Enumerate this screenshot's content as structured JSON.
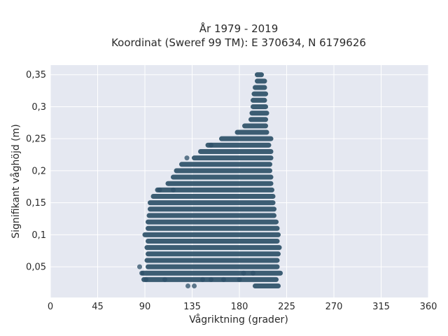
{
  "chart_data": {
    "type": "scatter",
    "title": "År 1979 - 2019",
    "subtitle": "Koordinat (Sweref 99 TM): E 370634, N 6179626",
    "xlabel": "Vågriktning (grader)",
    "ylabel": "Signifikant våghöjd (m)",
    "xlim": [
      0,
      360
    ],
    "ylim": [
      0.002,
      0.365
    ],
    "x_ticks": [
      0,
      45,
      90,
      135,
      180,
      225,
      270,
      315,
      360
    ],
    "x_tick_labels": [
      "0",
      "45",
      "90",
      "135",
      "180",
      "225",
      "270",
      "315",
      "360"
    ],
    "y_ticks": [
      0.05,
      0.1,
      0.15,
      0.2,
      0.25,
      0.3,
      0.35
    ],
    "y_tick_labels": [
      "0,05",
      "0,1",
      "0,15",
      "0,2",
      "0,25",
      "0,3",
      "0,35"
    ],
    "grid": true,
    "marker_color": "#2e5068",
    "plot_background": "#e5e8f1",
    "bands": [
      {
        "y": 0.02,
        "x_min": 195,
        "x_max": 217
      },
      {
        "y": 0.03,
        "x_min": 89,
        "x_max": 215
      },
      {
        "y": 0.04,
        "x_min": 88,
        "x_max": 219
      },
      {
        "y": 0.05,
        "x_min": 93,
        "x_max": 216
      },
      {
        "y": 0.06,
        "x_min": 92,
        "x_max": 216
      },
      {
        "y": 0.07,
        "x_min": 93,
        "x_max": 217
      },
      {
        "y": 0.08,
        "x_min": 92,
        "x_max": 218
      },
      {
        "y": 0.09,
        "x_min": 93,
        "x_max": 216
      },
      {
        "y": 0.1,
        "x_min": 90,
        "x_max": 217
      },
      {
        "y": 0.11,
        "x_min": 93,
        "x_max": 216
      },
      {
        "y": 0.12,
        "x_min": 93,
        "x_max": 215
      },
      {
        "y": 0.13,
        "x_min": 94,
        "x_max": 213
      },
      {
        "y": 0.14,
        "x_min": 95,
        "x_max": 213
      },
      {
        "y": 0.15,
        "x_min": 95,
        "x_max": 212
      },
      {
        "y": 0.16,
        "x_min": 98,
        "x_max": 212
      },
      {
        "y": 0.17,
        "x_min": 102,
        "x_max": 211
      },
      {
        "y": 0.18,
        "x_min": 112,
        "x_max": 210
      },
      {
        "y": 0.19,
        "x_min": 117,
        "x_max": 210
      },
      {
        "y": 0.2,
        "x_min": 120,
        "x_max": 209
      },
      {
        "y": 0.21,
        "x_min": 125,
        "x_max": 209
      },
      {
        "y": 0.22,
        "x_min": 137,
        "x_max": 210
      },
      {
        "y": 0.23,
        "x_min": 143,
        "x_max": 210
      },
      {
        "y": 0.24,
        "x_min": 150,
        "x_max": 208
      },
      {
        "y": 0.25,
        "x_min": 163,
        "x_max": 210
      },
      {
        "y": 0.26,
        "x_min": 178,
        "x_max": 206
      },
      {
        "y": 0.27,
        "x_min": 185,
        "x_max": 205
      },
      {
        "y": 0.28,
        "x_min": 191,
        "x_max": 205
      },
      {
        "y": 0.29,
        "x_min": 192,
        "x_max": 206
      },
      {
        "y": 0.3,
        "x_min": 193,
        "x_max": 205
      },
      {
        "y": 0.31,
        "x_min": 193,
        "x_max": 204
      },
      {
        "y": 0.32,
        "x_min": 194,
        "x_max": 205
      },
      {
        "y": 0.33,
        "x_min": 195,
        "x_max": 204
      },
      {
        "y": 0.34,
        "x_min": 197,
        "x_max": 204
      },
      {
        "y": 0.35,
        "x_min": 197,
        "x_max": 201
      }
    ],
    "outliers": [
      {
        "x": 130,
        "y": 0.22
      },
      {
        "x": 153,
        "y": 0.24
      },
      {
        "x": 117,
        "y": 0.17
      },
      {
        "x": 104,
        "y": 0.17
      },
      {
        "x": 85,
        "y": 0.05
      },
      {
        "x": 87,
        "y": 0.04
      },
      {
        "x": 91,
        "y": 0.03
      },
      {
        "x": 109,
        "y": 0.03
      },
      {
        "x": 131,
        "y": 0.02
      },
      {
        "x": 137,
        "y": 0.02
      },
      {
        "x": 145,
        "y": 0.03
      },
      {
        "x": 153,
        "y": 0.03
      },
      {
        "x": 165,
        "y": 0.03
      },
      {
        "x": 180,
        "y": 0.03
      },
      {
        "x": 184,
        "y": 0.04
      },
      {
        "x": 193,
        "y": 0.04
      }
    ]
  }
}
